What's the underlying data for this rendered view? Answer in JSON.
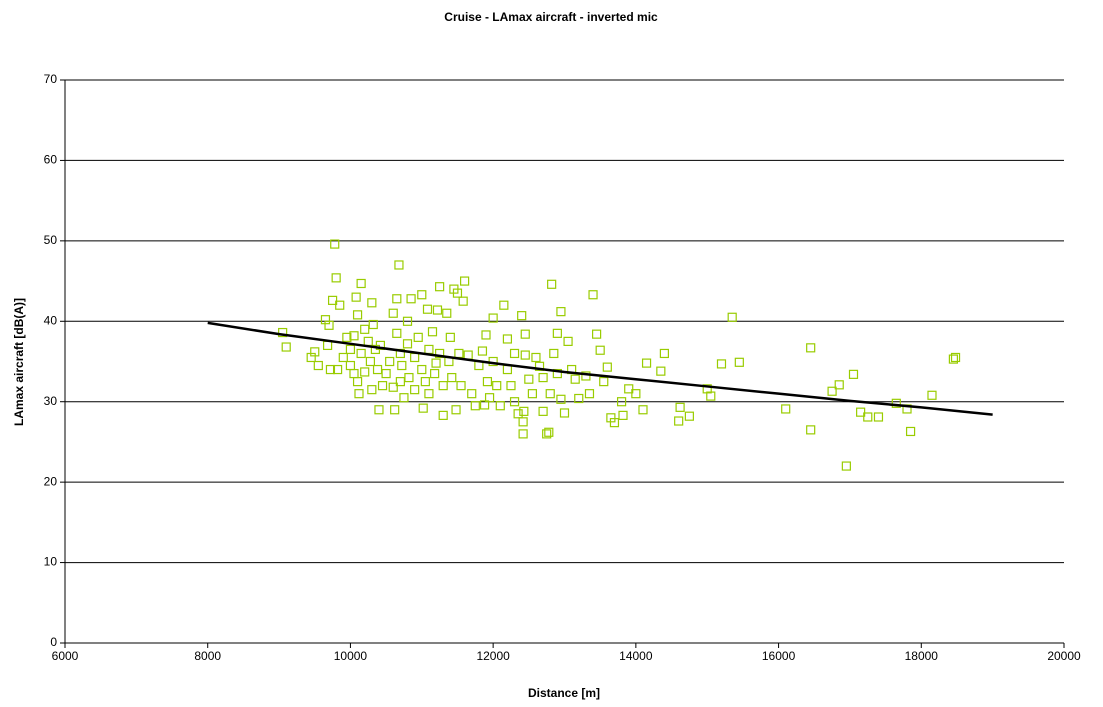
{
  "chart_data": {
    "type": "scatter",
    "title": "Cruise - LAmax aircraft - inverted mic",
    "xlabel": "Distance [m]",
    "ylabel": "LAmax aircraft [dB(A)]",
    "xlim": [
      6000,
      20000
    ],
    "xticks": [
      6000,
      8000,
      10000,
      12000,
      14000,
      16000,
      18000,
      20000
    ],
    "ylim": [
      0,
      70
    ],
    "yticks": [
      0,
      10,
      20,
      30,
      40,
      50,
      60,
      70
    ],
    "grid": true,
    "series": [
      {
        "type": "scatter",
        "marker": "square",
        "color": "#99cc00",
        "x": [
          9050,
          9100,
          9450,
          9500,
          9550,
          9650,
          9680,
          9700,
          9720,
          9750,
          9780,
          9800,
          9820,
          9850,
          9900,
          9950,
          10000,
          10000,
          10050,
          10050,
          10080,
          10100,
          10100,
          10120,
          10150,
          10150,
          10200,
          10200,
          10250,
          10280,
          10300,
          10300,
          10320,
          10350,
          10380,
          10400,
          10420,
          10450,
          10500,
          10550,
          10600,
          10600,
          10620,
          10650,
          10650,
          10680,
          10700,
          10700,
          10720,
          10750,
          10800,
          10800,
          10820,
          10850,
          10900,
          10900,
          10950,
          11000,
          11000,
          11020,
          11050,
          11080,
          11100,
          11100,
          11150,
          11180,
          11200,
          11220,
          11250,
          11250,
          11300,
          11300,
          11350,
          11380,
          11400,
          11420,
          11450,
          11480,
          11500,
          11520,
          11550,
          11580,
          11600,
          11650,
          11700,
          11750,
          11800,
          11850,
          11880,
          11900,
          11920,
          11950,
          12000,
          12000,
          12050,
          12100,
          12150,
          12200,
          12200,
          12250,
          12300,
          12300,
          12350,
          12400,
          12420,
          12420,
          12430,
          12450,
          12450,
          12500,
          12550,
          12600,
          12650,
          12700,
          12700,
          12750,
          12780,
          12800,
          12820,
          12850,
          12900,
          12900,
          12950,
          12950,
          13000,
          13050,
          13100,
          13150,
          13200,
          13300,
          13350,
          13400,
          13450,
          13500,
          13550,
          13600,
          13650,
          13700,
          13800,
          13820,
          13900,
          14000,
          14100,
          14150,
          14350,
          14400,
          14600,
          14620,
          14750,
          15000,
          15050,
          15200,
          15350,
          15450,
          16100,
          16450,
          16450,
          16750,
          16850,
          16950,
          17050,
          17150,
          17250,
          17400,
          17650,
          17800,
          17850,
          18150,
          18450,
          18480
        ],
        "values": [
          38.6,
          36.8,
          35.5,
          36.2,
          34.5,
          40.2,
          37,
          39.5,
          34,
          42.6,
          49.6,
          45.4,
          34,
          42,
          35.5,
          38,
          36.5,
          34.5,
          33.5,
          38.2,
          43,
          40.8,
          32.5,
          31,
          44.7,
          36,
          39,
          33.7,
          37.5,
          35,
          42.3,
          31.5,
          39.6,
          36.5,
          34,
          29,
          37,
          32,
          33.5,
          35,
          41,
          31.8,
          29,
          42.8,
          38.5,
          47,
          36,
          32.5,
          34.5,
          30.5,
          40,
          37.2,
          33,
          42.8,
          31.5,
          35.5,
          38,
          43.3,
          34,
          29.2,
          32.5,
          41.5,
          36.5,
          31,
          38.7,
          33.5,
          34.8,
          41.4,
          44.3,
          36,
          32,
          28.3,
          41,
          35,
          38,
          33,
          44,
          29,
          43.5,
          36,
          32,
          42.5,
          45,
          35.8,
          31,
          29.5,
          34.5,
          36.3,
          29.6,
          38.3,
          32.5,
          30.5,
          40.4,
          35,
          32,
          29.5,
          42,
          37.8,
          34,
          32,
          30,
          36,
          28.5,
          40.7,
          27.5,
          26,
          28.8,
          35.8,
          38.4,
          32.8,
          31,
          35.5,
          34.4,
          28.8,
          33,
          26,
          26.2,
          31,
          44.6,
          36,
          38.5,
          33.5,
          41.2,
          30.3,
          28.6,
          37.5,
          34,
          32.8,
          30.4,
          33.2,
          31,
          43.3,
          38.4,
          36.4,
          32.5,
          34.3,
          28,
          27.4,
          30,
          28.3,
          31.6,
          31,
          29,
          34.8,
          33.8,
          36,
          27.6,
          29.3,
          28.2,
          31.6,
          30.7,
          34.7,
          40.5,
          34.9,
          29.1,
          36.7,
          26.5,
          31.3,
          32.1,
          22,
          33.4,
          28.7,
          28.1,
          28.1,
          29.8,
          29.1,
          26.3,
          30.8,
          35.3,
          35.5
        ]
      },
      {
        "type": "line",
        "color": "#000000",
        "x": [
          8000,
          9000,
          10000,
          11000,
          12000,
          13000,
          14000,
          15000,
          16000,
          17000,
          18000,
          19000
        ],
        "values": [
          39.8,
          38.4,
          37.2,
          36.0,
          34.8,
          33.7,
          32.8,
          31.9,
          31.0,
          30.1,
          29.3,
          28.4
        ]
      }
    ]
  }
}
